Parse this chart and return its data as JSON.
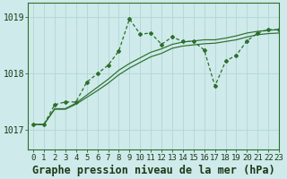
{
  "title": "Graphe pression niveau de la mer (hPa)",
  "bg_color": "#ceeaea",
  "grid_color": "#b8d8d8",
  "line_color": "#2d6e2d",
  "xlim": [
    -0.5,
    23
  ],
  "ylim": [
    1016.65,
    1019.25
  ],
  "yticks": [
    1017,
    1018,
    1019
  ],
  "xticks": [
    0,
    1,
    2,
    3,
    4,
    5,
    6,
    7,
    8,
    9,
    10,
    11,
    12,
    13,
    14,
    15,
    16,
    17,
    18,
    19,
    20,
    21,
    22,
    23
  ],
  "series_main": [
    1017.1,
    1017.1,
    1017.45,
    1017.5,
    1017.5,
    1017.85,
    1018.0,
    1018.15,
    1018.4,
    1018.97,
    1018.7,
    1018.72,
    1018.52,
    1018.65,
    1018.57,
    1018.57,
    1018.42,
    1017.78,
    1018.22,
    1018.33,
    1018.58,
    1018.72,
    1018.78,
    1018.78
  ],
  "series_trend1": [
    1017.1,
    1017.1,
    1017.38,
    1017.38,
    1017.48,
    1017.62,
    1017.76,
    1017.9,
    1018.06,
    1018.18,
    1018.28,
    1018.38,
    1018.44,
    1018.52,
    1018.56,
    1018.58,
    1018.6,
    1018.6,
    1018.63,
    1018.67,
    1018.72,
    1018.75,
    1018.77,
    1018.78
  ],
  "series_trend2": [
    1017.1,
    1017.1,
    1017.37,
    1017.37,
    1017.46,
    1017.58,
    1017.7,
    1017.83,
    1017.98,
    1018.1,
    1018.2,
    1018.3,
    1018.36,
    1018.45,
    1018.49,
    1018.51,
    1018.53,
    1018.54,
    1018.57,
    1018.6,
    1018.65,
    1018.69,
    1018.71,
    1018.72
  ],
  "title_fontsize": 8.5,
  "tick_fontsize": 6.5
}
